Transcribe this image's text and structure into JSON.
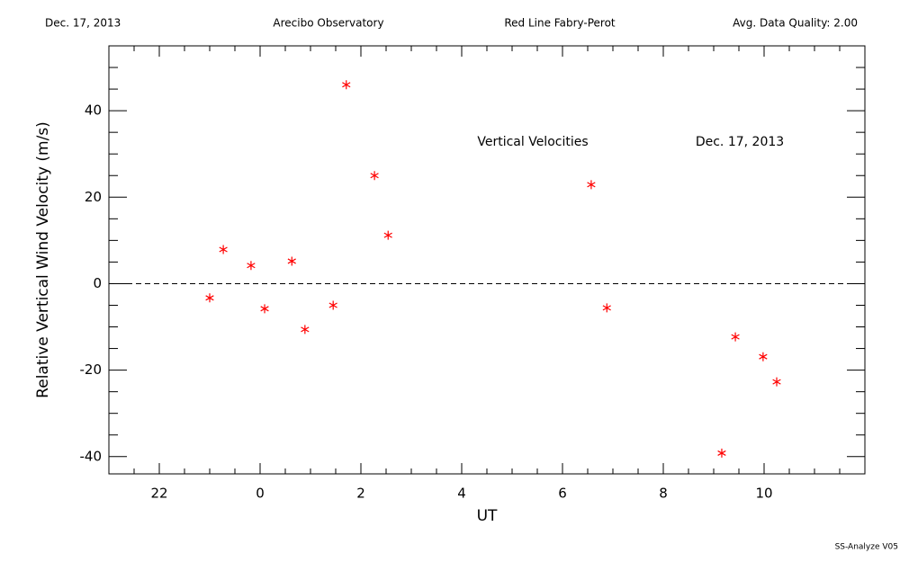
{
  "chart_data": {
    "type": "scatter",
    "header": [
      "Dec. 17, 2013",
      "Arecibo Observatory",
      "Red Line Fabry-Perot",
      "Avg. Data Quality: 2.00"
    ],
    "annotations": [
      "Vertical Velocities",
      "Dec. 17, 2013"
    ],
    "footer": "SS-Analyze V05",
    "x_label": "UT",
    "y_label": "Relative Vertical Wind Velocity (m/s)",
    "xlim": [
      -3,
      12
    ],
    "ylim": [
      -44,
      55
    ],
    "xticks": [
      {
        "value": -2,
        "label": "22"
      },
      0,
      2,
      4,
      6,
      8,
      10
    ],
    "yticks": [
      -40,
      -20,
      0,
      20,
      40
    ],
    "xminorticks": [
      -2.5,
      -1.5,
      -1,
      -0.5,
      0.5,
      1,
      1.5,
      2.5,
      3,
      3.5,
      4.5,
      5,
      5.5,
      6.5,
      7,
      7.5,
      8.5,
      9,
      9.5,
      10.5,
      11,
      11.5
    ],
    "yminorticks": [
      -35,
      -30,
      -25,
      -15,
      -10,
      -5,
      5,
      10,
      15,
      25,
      30,
      35,
      45,
      50
    ],
    "hline": 0,
    "color": "#ff0000",
    "x": [
      -1.0,
      -0.73,
      -0.18,
      0.09,
      0.63,
      0.89,
      1.45,
      1.71,
      2.27,
      2.54,
      6.57,
      6.88,
      9.16,
      9.43,
      9.98,
      10.25
    ],
    "values": [
      -3.3,
      7.9,
      4.2,
      -5.8,
      5.2,
      -10.6,
      -5.0,
      46.0,
      25.0,
      11.2,
      22.9,
      -5.6,
      -39.2,
      -12.3,
      -16.9,
      -22.7
    ]
  }
}
